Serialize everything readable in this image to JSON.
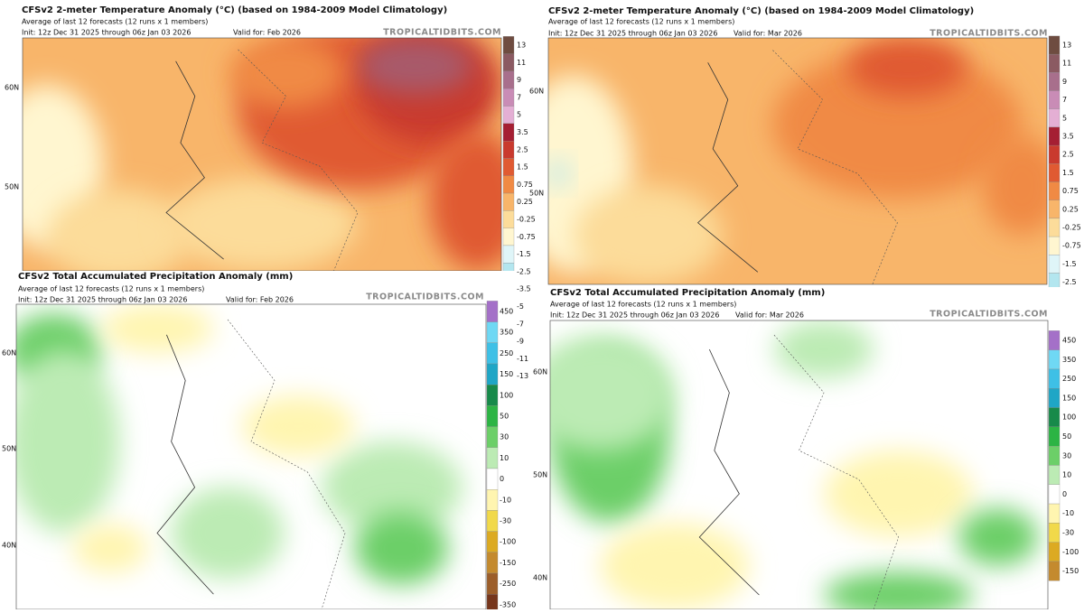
{
  "panels": [
    {
      "title": "CFSv2 2-meter Temperature Anomaly (°C) (based on 1984-2009 Model Climatology)",
      "subtitle": "Average of last 12 forecasts (12 runs x 1 members)",
      "init": "Init: 12z Dec 31 2025 through 06z Jan 03 2026",
      "valid": "Valid for: Feb 2026",
      "credit": "TROPICALTIDBITS.COM",
      "latitudes": [
        "60N",
        "50N"
      ],
      "scale": [
        13,
        11,
        9,
        7,
        5,
        3.5,
        2.5,
        1.5,
        0.75,
        0.25,
        -0.25,
        -0.75,
        -1.5,
        -2.5,
        -3.5,
        -5,
        -7,
        -9,
        -11,
        -13
      ],
      "colors": [
        "#6e4c40",
        "#8b5a62",
        "#a86f8c",
        "#c98cb6",
        "#e4afd4",
        "#a51f33",
        "#c93a2e",
        "#e05a32",
        "#f08a44",
        "#f8b56a",
        "#fcdc9a",
        "#fff6d0",
        "#dff5f8",
        "#b3e6ef",
        "#7fcfe6",
        "#4eaee0",
        "#3584cc",
        "#2d5eb4",
        "#2a3f96",
        "#22286e"
      ]
    },
    {
      "title": "CFSv2 2-meter Temperature Anomaly (°C) (based on 1984-2009 Model Climatology)",
      "subtitle": "Average of last 12 forecasts (12 runs x 1 members)",
      "init": "Init: 12z Dec 31 2025 through 06z Jan 03 2026",
      "valid": "Valid for: Mar 2026",
      "credit": "TROPICALTIDBITS.COM",
      "latitudes": [
        "60N",
        "50N"
      ],
      "scale": [
        13,
        11,
        9,
        7,
        5,
        3.5,
        2.5,
        1.5,
        0.75,
        0.25,
        -0.25,
        -0.75,
        -1.5,
        -2.5
      ],
      "colors": [
        "#6e4c40",
        "#8b5a62",
        "#a86f8c",
        "#c98cb6",
        "#e4afd4",
        "#a51f33",
        "#c93a2e",
        "#e05a32",
        "#f08a44",
        "#f8b56a",
        "#fcdc9a",
        "#fff6d0",
        "#dff5f8",
        "#b3e6ef"
      ]
    },
    {
      "title": "CFSv2 Total Accumulated Precipitation Anomaly (mm)",
      "subtitle": "Average of last 12 forecasts (12 runs x 1 members)",
      "init": "Init: 12z Dec 31 2025 through 06z Jan 03 2026",
      "valid": "Valid for: Feb 2026",
      "credit": "TROPICALTIDBITS.COM",
      "latitudes": [
        "60N",
        "50N",
        "40N"
      ],
      "scale": [
        450,
        350,
        250,
        150,
        100,
        50,
        30,
        10,
        0,
        -10,
        -30,
        -100,
        -150,
        -250,
        -350
      ],
      "colors": [
        "#a470c8",
        "#6fd8f4",
        "#3ec0e6",
        "#1fa6c6",
        "#178a4a",
        "#2cb444",
        "#6ccf68",
        "#bcebb4",
        "#ffffff",
        "#fff5b0",
        "#f1d94a",
        "#dcaa22",
        "#c48a2e",
        "#9c5e2a",
        "#76361c"
      ]
    },
    {
      "title": "CFSv2 Total Accumulated Precipitation Anomaly (mm)",
      "subtitle": "Average of last 12 forecasts (12 runs x 1 members)",
      "init": "Init: 12z Dec 31 2025 through 06z Jan 03 2026",
      "valid": "Valid for: Mar 2026",
      "credit": "TROPICALTIDBITS.COM",
      "latitudes": [
        "60N",
        "50N",
        "40N"
      ],
      "scale": [
        450,
        350,
        250,
        150,
        100,
        50,
        30,
        10,
        0,
        -10,
        -30,
        -100,
        -150
      ],
      "colors": [
        "#a470c8",
        "#6fd8f4",
        "#3ec0e6",
        "#1fa6c6",
        "#178a4a",
        "#2cb444",
        "#6ccf68",
        "#bcebb4",
        "#ffffff",
        "#fff5b0",
        "#f1d94a",
        "#dcaa22",
        "#c48a2e"
      ]
    }
  ]
}
